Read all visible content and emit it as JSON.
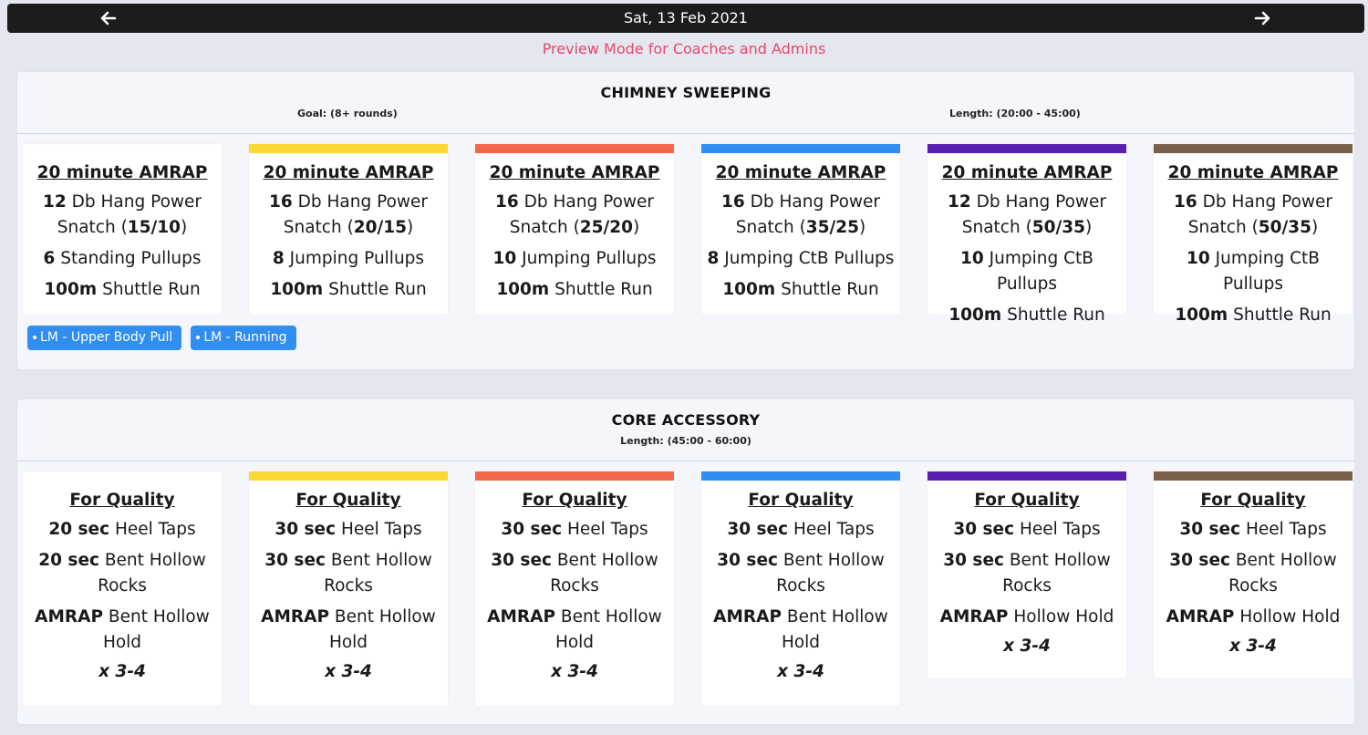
{
  "nav": {
    "date": "Sat, 13 Feb 2021"
  },
  "preview_text": "Preview Mode for Coaches and Admins",
  "sections": [
    {
      "title": "CHIMNEY SWEEPING",
      "goal": "Goal: (8+ rounds)",
      "length": "Length: (20:00 - 45:00)",
      "tags": [
        "LM - Upper Body Pull",
        "LM - Running"
      ],
      "cards": [
        {
          "color": "#ffffff",
          "heading": "20 minute AMRAP",
          "l1b": "12",
          "l1": " Db Hang Power",
          "l2": "Snatch (",
          "l2b": "15/10",
          "l2e": ")",
          "l3b": "6",
          "l3": " Standing Pullups",
          "l4b": "100m",
          "l4": " Shuttle Run"
        },
        {
          "color": "#fbd835",
          "heading": "20 minute AMRAP",
          "l1b": "16",
          "l1": " Db Hang Power",
          "l2": "Snatch (",
          "l2b": "20/15",
          "l2e": ")",
          "l3b": "8",
          "l3": " Jumping Pullups",
          "l4b": "100m",
          "l4": " Shuttle Run"
        },
        {
          "color": "#f4684a",
          "heading": "20 minute AMRAP",
          "l1b": "16",
          "l1": " Db Hang Power",
          "l2": "Snatch (",
          "l2b": "25/20",
          "l2e": ")",
          "l3b": "10",
          "l3": " Jumping Pullups",
          "l4b": "100m",
          "l4": " Shuttle Run"
        },
        {
          "color": "#2f8ef0",
          "heading": "20 minute AMRAP",
          "l1b": "16",
          "l1": " Db Hang Power",
          "l2": "Snatch (",
          "l2b": "35/25",
          "l2e": ")",
          "l3b": "8",
          "l3": " Jumping CtB Pullups",
          "l4b": "100m",
          "l4": " Shuttle Run"
        },
        {
          "color": "#5a1fae",
          "heading": "20 minute AMRAP",
          "l1b": "12",
          "l1": " Db Hang Power",
          "l2": "Snatch (",
          "l2b": "50/35",
          "l2e": ")",
          "l3b": "10",
          "l3": " Jumping CtB Pullups",
          "l4b": "100m",
          "l4": " Shuttle Run"
        },
        {
          "color": "#7a604a",
          "heading": "20 minute AMRAP",
          "l1b": "16",
          "l1": " Db Hang Power",
          "l2": "Snatch (",
          "l2b": "50/35",
          "l2e": ")",
          "l3b": "10",
          "l3": " Jumping CtB Pullups",
          "l4b": "100m",
          "l4": " Shuttle Run"
        }
      ]
    },
    {
      "title": "CORE ACCESSORY",
      "length": "Length: (45:00 - 60:00)",
      "cards": [
        {
          "color": "#ffffff",
          "heading": "For Quality",
          "a1b": "20 sec",
          "a1": " Heel Taps",
          "b1b": "20 sec",
          "b1": " Bent Hollow",
          "b2": "Rocks",
          "c1b": "AMRAP",
          "c1": " Bent Hollow",
          "c2": "Hold",
          "mult": "x 3-4"
        },
        {
          "color": "#fbd835",
          "heading": "For Quality",
          "a1b": "30 sec",
          "a1": " Heel Taps",
          "b1b": "30 sec",
          "b1": " Bent Hollow",
          "b2": "Rocks",
          "c1b": "AMRAP",
          "c1": " Bent Hollow",
          "c2": "Hold",
          "mult": "x 3-4"
        },
        {
          "color": "#f4684a",
          "heading": "For Quality",
          "a1b": "30 sec",
          "a1": " Heel Taps",
          "b1b": "30 sec",
          "b1": " Bent Hollow",
          "b2": "Rocks",
          "c1b": "AMRAP",
          "c1": " Bent Hollow",
          "c2": "Hold",
          "mult": "x 3-4"
        },
        {
          "color": "#2f8ef0",
          "heading": "For Quality",
          "a1b": "30 sec",
          "a1": " Heel Taps",
          "b1b": "30 sec",
          "b1": " Bent Hollow",
          "b2": "Rocks",
          "c1b": "AMRAP",
          "c1": " Bent Hollow",
          "c2": "Hold",
          "mult": "x 3-4"
        },
        {
          "color": "#5a1fae",
          "heading": "For Quality",
          "a1b": "30 sec",
          "a1": " Heel Taps",
          "b1b": "30 sec",
          "b1": " Bent Hollow",
          "b2": "Rocks",
          "c1b": "AMRAP",
          "c1": " Hollow Hold",
          "c2": "",
          "mult": "x 3-4"
        },
        {
          "color": "#7a604a",
          "heading": "For Quality",
          "a1b": "30 sec",
          "a1": " Heel Taps",
          "b1b": "30 sec",
          "b1": " Bent Hollow",
          "b2": "Rocks",
          "c1b": "AMRAP",
          "c1": " Hollow Hold",
          "c2": "",
          "mult": "x 3-4"
        }
      ]
    }
  ]
}
